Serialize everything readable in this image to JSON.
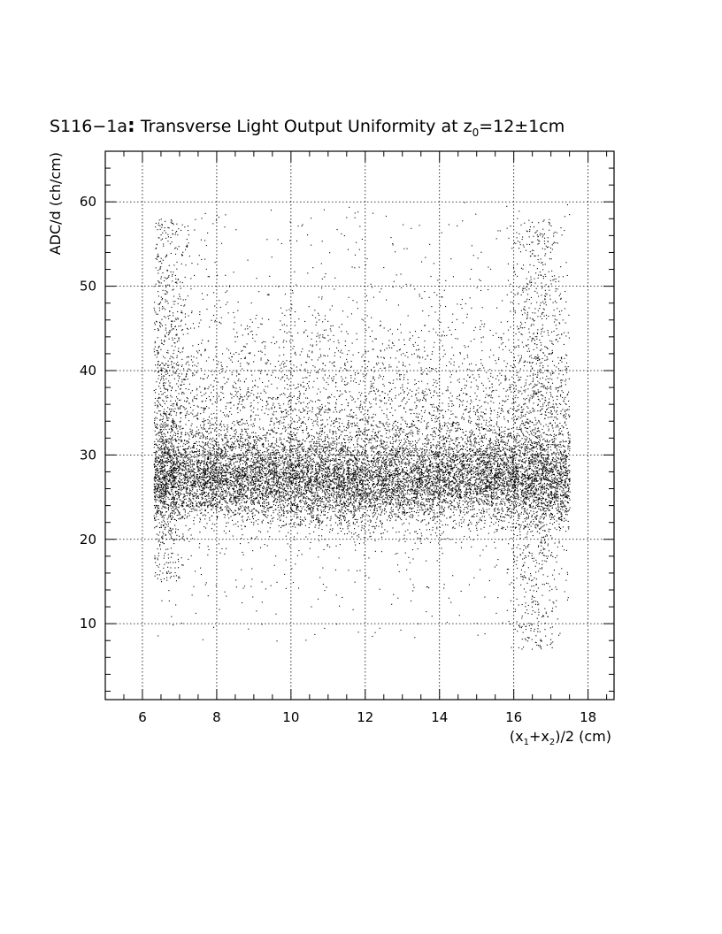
{
  "chart_data": {
    "type": "scatter",
    "title": {
      "prefix": "S116−1a",
      "colon": ":",
      "main": " Transverse Light Output Uniformity at z",
      "sub": "0",
      "suffix": "=12±1cm"
    },
    "xlabel": {
      "p1": "(x",
      "s1": "1",
      "p2": "+x",
      "s2": "2",
      "p3": ")/2 (cm)"
    },
    "ylabel": "ADC/d (ch/cm)",
    "xlim": [
      5,
      18.7
    ],
    "ylim": [
      1,
      66
    ],
    "x_ticks": [
      6,
      8,
      10,
      12,
      14,
      16,
      18
    ],
    "y_ticks": [
      10,
      20,
      30,
      40,
      50,
      60
    ],
    "grid": true,
    "distribution": {
      "x_range": [
        6.3,
        17.5
      ],
      "band_center": 27,
      "band_spread": 2.5,
      "halo_center": 30,
      "halo_spread": 8,
      "y_max": 60,
      "edge_features": [
        {
          "x_center": 6.6,
          "y_min": 15,
          "y_max": 58
        },
        {
          "x_center": 16.6,
          "y_min": 7,
          "y_max": 58
        }
      ]
    },
    "point_color": "#000000"
  }
}
